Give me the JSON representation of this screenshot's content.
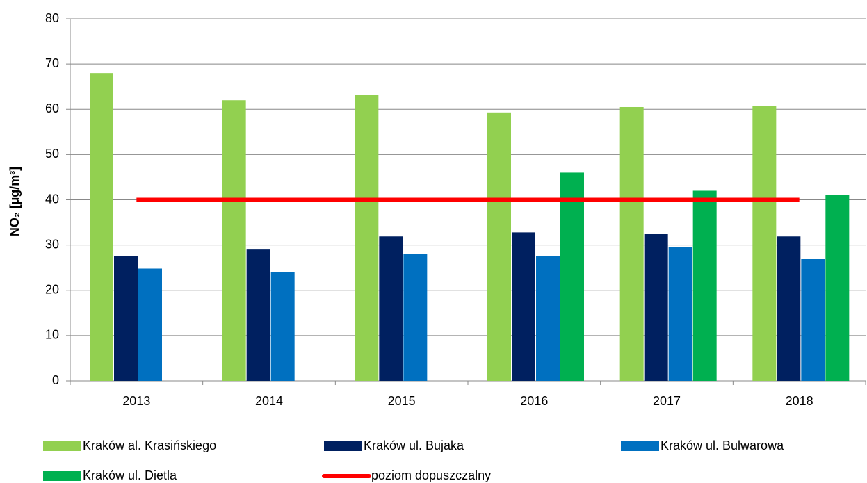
{
  "chart_data": {
    "type": "bar",
    "y_label": "NO₂ [µg/m³]",
    "categories": [
      "2013",
      "2014",
      "2015",
      "2016",
      "2017",
      "2018"
    ],
    "series": [
      {
        "name": "Kraków al. Krasińskiego",
        "color": "#92d050",
        "values": [
          68,
          62,
          63.2,
          59.3,
          60.5,
          60.8
        ]
      },
      {
        "name": "Kraków ul. Bujaka",
        "color": "#002060",
        "values": [
          27.5,
          29,
          31.9,
          32.8,
          32.5,
          31.9
        ]
      },
      {
        "name": "Kraków ul. Bulwarowa",
        "color": "#0070c0",
        "values": [
          24.8,
          24,
          28,
          27.5,
          29.5,
          27
        ]
      },
      {
        "name": "Kraków ul. Dietla",
        "color": "#00b050",
        "values": [
          null,
          null,
          null,
          46,
          42,
          41
        ]
      },
      {
        "name": "poziom dopuszczalny",
        "type": "line",
        "color": "#ff0000",
        "values": [
          40,
          40,
          40,
          40,
          40,
          40
        ]
      }
    ],
    "ylim": [
      0,
      80
    ],
    "yticks": [
      0,
      10,
      20,
      30,
      40,
      50,
      60,
      70,
      80
    ],
    "grid": true
  }
}
